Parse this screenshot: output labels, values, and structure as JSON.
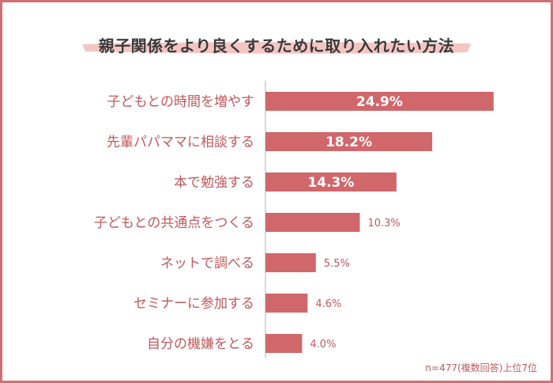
{
  "title": "親子関係をより良くするために取り入れたい方法",
  "note": "n=477(複数回答)上位7位",
  "colors": {
    "bar": "#d0676b",
    "label": "#c0585c",
    "inside_label": "#ffffff",
    "axis": "#cccccc",
    "title_brush": "#f3c6c2",
    "frame": "#d06f72"
  },
  "chart_data": {
    "type": "bar",
    "orientation": "horizontal",
    "categories": [
      "子どもとの時間を増やす",
      "先輩パパママに相談する",
      "本で勉強する",
      "子どもとの共通点をつくる",
      "ネットで調べる",
      "セミナーに参加する",
      "自分の機嫌をとる"
    ],
    "values": [
      24.9,
      18.2,
      14.3,
      10.3,
      5.5,
      4.6,
      4.0
    ],
    "value_labels": [
      "24.9%",
      "18.2%",
      "14.3%",
      "10.3%",
      "5.5%",
      "4.6%",
      "4.0%"
    ],
    "label_inside_bar": [
      true,
      true,
      true,
      false,
      false,
      false,
      false
    ],
    "unit": "%",
    "xlim": [
      0,
      25
    ],
    "grid": false,
    "legend": "none"
  }
}
